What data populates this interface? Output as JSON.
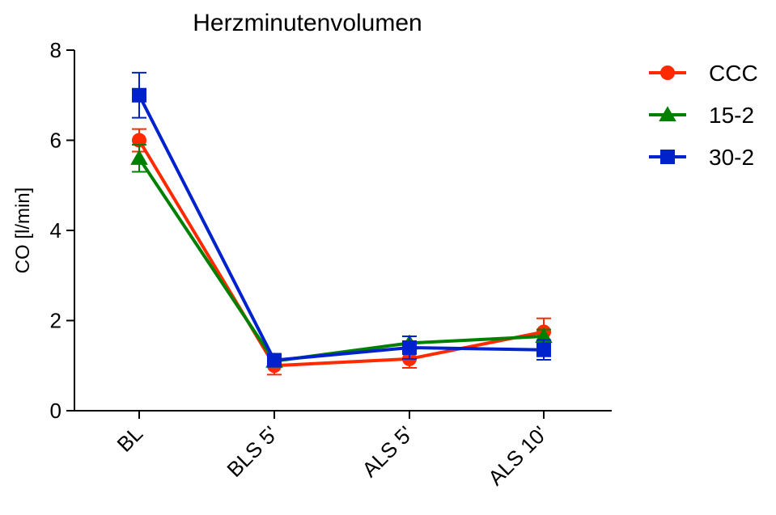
{
  "chart_data": {
    "type": "line",
    "title": "Herzminutenvolumen",
    "xlabel": "",
    "ylabel": "CO [l/min]",
    "categories": [
      "BL",
      "BLS 5'",
      "ALS 5'",
      "ALS 10'"
    ],
    "ylim": [
      0,
      8
    ],
    "yticks": [
      0,
      2,
      4,
      6,
      8
    ],
    "grid": false,
    "legend": "right",
    "error_bars": true,
    "series": [
      {
        "name": "CCC",
        "color": "#ff2a00",
        "marker": "circle",
        "values": [
          6.0,
          1.0,
          1.15,
          1.75
        ],
        "errors": [
          0.25,
          0.2,
          0.2,
          0.3
        ]
      },
      {
        "name": "15-2",
        "color": "#008000",
        "marker": "triangle",
        "values": [
          5.6,
          1.1,
          1.5,
          1.65
        ],
        "errors": [
          0.3,
          0.12,
          0.15,
          0.15
        ]
      },
      {
        "name": "30-2",
        "color": "#0022cc",
        "marker": "square",
        "values": [
          7.0,
          1.12,
          1.4,
          1.35
        ],
        "errors": [
          0.5,
          0.08,
          0.25,
          0.22
        ]
      }
    ]
  }
}
